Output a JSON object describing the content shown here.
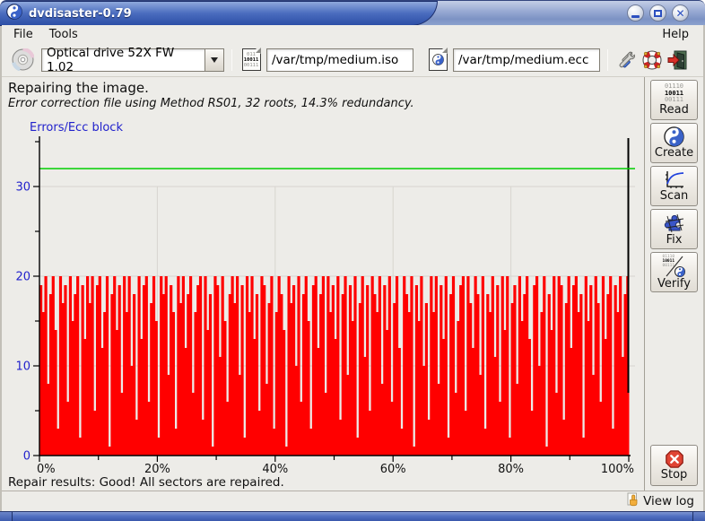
{
  "window": {
    "title": "dvdisaster-0.79"
  },
  "menu": {
    "items": [
      "File",
      "Tools"
    ],
    "help": "Help"
  },
  "toolbar": {
    "drive_select": "Optical drive 52X FW 1.02",
    "image_file": "/var/tmp/medium.iso",
    "ecc_file": "/var/tmp/medium.ecc"
  },
  "icons": {
    "binary_large": [
      "01110",
      "10011",
      "00111"
    ],
    "binary_doc": [
      "011",
      "10011",
      "00111"
    ],
    "binary_tiny": [
      "01110",
      "10011",
      "00111"
    ]
  },
  "status": {
    "line1": "Repairing the image.",
    "line2": "Error correction file using Method RS01, 32 roots, 14.3% redundancy."
  },
  "chart_data": {
    "type": "bar",
    "title": "Errors/Ecc block",
    "xlabel": "",
    "ylabel": "Errors/Ecc block",
    "ylim": [
      0,
      35
    ],
    "yticks_major": [
      0,
      10,
      20,
      30
    ],
    "yticks_minor": [
      5,
      15,
      25,
      35
    ],
    "xticks_major_percent": [
      0,
      20,
      40,
      60,
      80,
      100
    ],
    "xtick_labels": [
      "0%",
      "20%",
      "40%",
      "60%",
      "80%",
      "100%"
    ],
    "xticks_minor_percent": [
      10,
      30,
      50,
      70,
      90
    ],
    "grid": true,
    "limit_line": {
      "value": 32,
      "color": "#00CE00"
    },
    "cursor": {
      "position_percent": 100,
      "bottom_value": 7,
      "color": "#000000"
    },
    "bar_color": "#FF0000",
    "grid_color": "#D7D5CF",
    "axis_color": "#000000",
    "ytick_label_color": "#2222CC",
    "xtick_label_color": "#111111",
    "values": [
      19,
      16,
      20,
      8,
      18,
      20,
      14,
      3,
      20,
      17,
      19,
      6,
      20,
      15,
      18,
      20,
      2,
      19,
      13,
      20,
      17,
      20,
      5,
      19,
      20,
      12,
      16,
      20,
      1,
      18,
      20,
      14,
      19,
      7,
      20,
      16,
      20,
      10,
      18,
      4,
      20,
      13,
      19,
      20,
      6,
      17,
      20,
      15,
      2,
      20,
      18,
      20,
      9,
      19,
      16,
      3,
      20,
      17,
      20,
      12,
      18,
      20,
      7,
      16,
      19,
      20,
      4,
      20,
      14,
      18,
      1,
      20,
      19,
      11,
      20,
      15,
      6,
      18,
      20,
      17,
      20,
      9,
      19,
      2,
      20,
      16,
      20,
      13,
      18,
      5,
      20,
      19,
      8,
      17,
      20,
      3,
      16,
      20,
      18,
      14,
      1,
      20,
      17,
      19,
      10,
      20,
      6,
      18,
      20,
      15,
      3,
      19,
      20,
      12,
      18,
      20,
      7,
      20,
      16,
      19,
      13,
      20,
      4,
      18,
      20,
      9,
      19,
      15,
      20,
      2,
      17,
      20,
      11,
      19,
      5,
      20,
      18,
      16,
      20,
      8,
      19,
      14,
      20,
      6,
      17,
      20,
      12,
      3,
      20,
      18,
      16,
      20,
      1,
      19,
      15,
      20,
      10,
      17,
      4,
      20,
      16,
      20,
      8,
      19,
      13,
      20,
      2,
      18,
      20,
      7,
      15,
      19,
      20,
      5,
      20,
      17,
      12,
      20,
      18,
      9,
      20,
      3,
      18,
      16,
      20,
      11,
      19,
      6,
      20,
      14,
      20,
      2,
      17,
      19,
      8,
      20,
      15,
      18,
      20,
      13,
      5,
      19,
      20,
      10,
      16,
      20,
      1,
      18,
      14,
      20,
      7,
      20,
      19,
      4,
      17,
      20,
      12,
      19,
      20,
      16,
      18,
      2,
      20,
      15,
      19,
      9,
      20,
      17,
      6,
      20,
      13,
      18,
      20,
      3,
      19,
      16,
      20,
      11,
      18,
      20
    ]
  },
  "sidebar": {
    "actions": [
      "Read",
      "Create",
      "Scan",
      "Fix",
      "Verify"
    ],
    "stop_label": "Stop"
  },
  "footer": {
    "results": "Repair results: Good! All sectors are repaired.",
    "view_log": "View log"
  }
}
